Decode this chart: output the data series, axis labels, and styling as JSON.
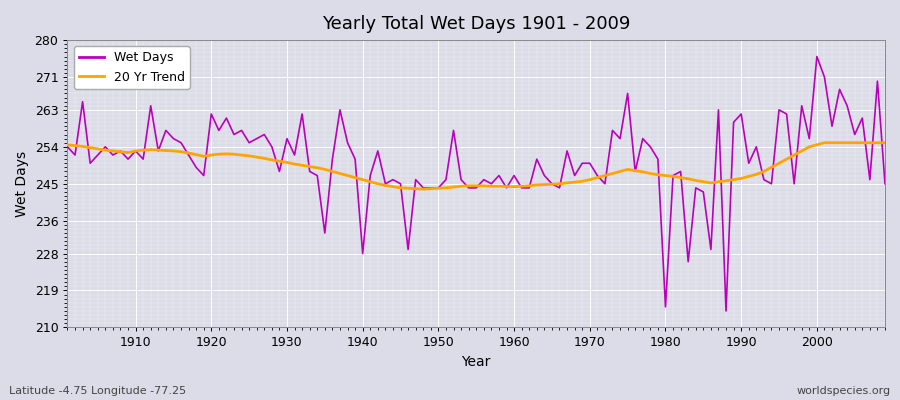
{
  "title": "Yearly Total Wet Days 1901 - 2009",
  "xlabel": "Year",
  "ylabel": "Wet Days",
  "ylim": [
    210,
    280
  ],
  "xlim": [
    1901,
    2009
  ],
  "yticks": [
    210,
    219,
    228,
    236,
    245,
    254,
    263,
    271,
    280
  ],
  "xticks": [
    1910,
    1920,
    1930,
    1940,
    1950,
    1960,
    1970,
    1980,
    1990,
    2000
  ],
  "wet_days_color": "#bb00bb",
  "trend_color": "#ffa500",
  "bg_color": "#dcdce8",
  "plot_bg_color": "#dcdce8",
  "grid_color": "#ffffff",
  "legend_labels": [
    "Wet Days",
    "20 Yr Trend"
  ],
  "bottom_left_text": "Latitude -4.75 Longitude -77.25",
  "bottom_right_text": "worldspecies.org",
  "years": [
    1901,
    1902,
    1903,
    1904,
    1905,
    1906,
    1907,
    1908,
    1909,
    1910,
    1911,
    1912,
    1913,
    1914,
    1915,
    1916,
    1917,
    1918,
    1919,
    1920,
    1921,
    1922,
    1923,
    1924,
    1925,
    1926,
    1927,
    1928,
    1929,
    1930,
    1931,
    1932,
    1933,
    1934,
    1935,
    1936,
    1937,
    1938,
    1939,
    1940,
    1941,
    1942,
    1943,
    1944,
    1945,
    1946,
    1947,
    1948,
    1949,
    1950,
    1951,
    1952,
    1953,
    1954,
    1955,
    1956,
    1957,
    1958,
    1959,
    1960,
    1961,
    1962,
    1963,
    1964,
    1965,
    1966,
    1967,
    1968,
    1969,
    1970,
    1971,
    1972,
    1973,
    1974,
    1975,
    1976,
    1977,
    1978,
    1979,
    1980,
    1981,
    1982,
    1983,
    1984,
    1985,
    1986,
    1987,
    1988,
    1989,
    1990,
    1991,
    1992,
    1993,
    1994,
    1995,
    1996,
    1997,
    1998,
    1999,
    2000,
    2001,
    2002,
    2003,
    2004,
    2005,
    2006,
    2007,
    2008,
    2009
  ],
  "wet_days": [
    254,
    252,
    265,
    250,
    252,
    254,
    252,
    253,
    251,
    253,
    251,
    264,
    253,
    258,
    256,
    255,
    252,
    249,
    247,
    262,
    258,
    261,
    257,
    258,
    255,
    256,
    257,
    254,
    248,
    256,
    252,
    262,
    248,
    247,
    233,
    251,
    263,
    255,
    251,
    228,
    247,
    253,
    245,
    246,
    245,
    229,
    246,
    244,
    244,
    244,
    246,
    258,
    246,
    244,
    244,
    246,
    245,
    247,
    244,
    247,
    244,
    244,
    251,
    247,
    245,
    244,
    253,
    247,
    250,
    250,
    247,
    245,
    258,
    256,
    267,
    248,
    256,
    254,
    251,
    215,
    247,
    248,
    226,
    244,
    243,
    229,
    263,
    214,
    260,
    262,
    250,
    254,
    246,
    245,
    263,
    262,
    245,
    264,
    256,
    276,
    271,
    259,
    268,
    264,
    257,
    261,
    246,
    270,
    245
  ],
  "trend": [
    254.5,
    254.3,
    254.1,
    253.8,
    253.5,
    253.2,
    253.0,
    252.8,
    252.6,
    253.0,
    253.2,
    253.3,
    253.2,
    253.1,
    253.0,
    252.8,
    252.5,
    252.1,
    251.7,
    252.0,
    252.2,
    252.3,
    252.2,
    252.0,
    251.8,
    251.5,
    251.2,
    250.8,
    250.5,
    250.2,
    249.8,
    249.5,
    249.2,
    248.9,
    248.5,
    248.0,
    247.5,
    247.0,
    246.5,
    246.0,
    245.5,
    245.0,
    244.6,
    244.3,
    244.0,
    243.9,
    243.8,
    243.7,
    243.8,
    243.9,
    244.0,
    244.2,
    244.4,
    244.5,
    244.5,
    244.5,
    244.4,
    244.4,
    244.3,
    244.3,
    244.4,
    244.5,
    244.7,
    244.8,
    244.9,
    245.0,
    245.2,
    245.4,
    245.6,
    246.0,
    246.5,
    247.0,
    247.5,
    248.0,
    248.5,
    248.2,
    247.9,
    247.5,
    247.2,
    247.0,
    246.8,
    246.5,
    246.2,
    245.8,
    245.5,
    245.2,
    245.5,
    245.7,
    246.0,
    246.3,
    246.8,
    247.3,
    248.0,
    249.0,
    250.0,
    251.0,
    252.0,
    253.0,
    254.0,
    254.5,
    255.0,
    255.0,
    255.0,
    255.0,
    255.0,
    255.0,
    255.0,
    255.0,
    255.0
  ]
}
